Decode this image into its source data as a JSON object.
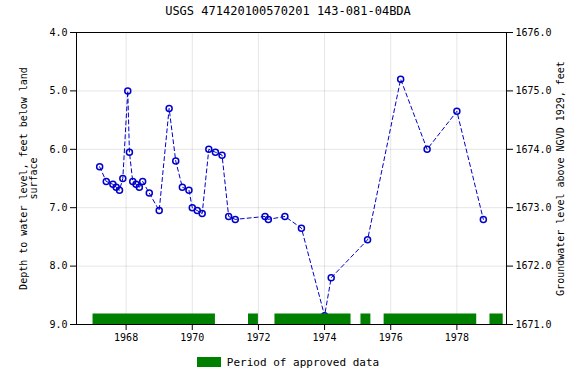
{
  "chart_data": {
    "type": "line",
    "title": "USGS 471420100570201 143-081-04BDA",
    "ylabel": "Depth to water level, feet below land\nsurface",
    "y2label": "Groundwater level above NGVD 1929, feet",
    "x": [
      1967.2,
      1967.4,
      1967.6,
      1967.7,
      1967.8,
      1967.9,
      1968.05,
      1968.1,
      1968.2,
      1968.3,
      1968.4,
      1968.5,
      1968.7,
      1969.0,
      1969.3,
      1969.5,
      1969.7,
      1969.9,
      1970.0,
      1970.15,
      1970.3,
      1970.5,
      1970.7,
      1970.9,
      1971.1,
      1971.3,
      1972.2,
      1972.3,
      1972.8,
      1973.3,
      1974.0,
      1974.2,
      1975.3,
      1976.3,
      1977.1,
      1978.0,
      1978.8
    ],
    "values": [
      6.3,
      6.55,
      6.6,
      6.65,
      6.7,
      6.5,
      5.0,
      6.05,
      6.55,
      6.6,
      6.65,
      6.55,
      6.75,
      7.05,
      5.3,
      6.2,
      6.65,
      6.7,
      7.0,
      7.05,
      7.1,
      6.0,
      6.05,
      6.1,
      7.15,
      7.2,
      7.15,
      7.2,
      7.15,
      7.35,
      8.85,
      8.2,
      7.55,
      4.8,
      6.0,
      5.35,
      7.2
    ],
    "color": "#0000cc",
    "marker": "circle",
    "line_style": "dashed",
    "approved_periods": {
      "name": "Period of approved data",
      "color": "#008000",
      "intervals": [
        [
          1967.0,
          1970.7
        ],
        [
          1971.7,
          1972.0
        ],
        [
          1972.5,
          1974.8
        ],
        [
          1975.1,
          1975.4
        ],
        [
          1975.8,
          1978.6
        ],
        [
          1979.0,
          1979.4
        ]
      ],
      "y_range": [
        8.82,
        9.0
      ]
    },
    "xlim": [
      1966.5,
      1979.5
    ],
    "xticks": [
      1968,
      1970,
      1972,
      1974,
      1976,
      1978
    ],
    "ylim": [
      9.0,
      4.0
    ],
    "yticks": [
      {
        "value": 4.0,
        "label": "4.0"
      },
      {
        "value": 5.0,
        "label": "5.0"
      },
      {
        "value": 6.0,
        "label": "6.0"
      },
      {
        "value": 7.0,
        "label": "7.0"
      },
      {
        "value": 8.0,
        "label": "8.0"
      },
      {
        "value": 9.0,
        "label": "9.0"
      }
    ],
    "y2lim": [
      1671.0,
      1676.0
    ],
    "y2ticks": [
      {
        "value": 1671.0,
        "label": "1671.0"
      },
      {
        "value": 1672.0,
        "label": "1672.0"
      },
      {
        "value": 1673.0,
        "label": "1673.0"
      },
      {
        "value": 1674.0,
        "label": "1674.0"
      },
      {
        "value": 1675.0,
        "label": "1675.0"
      },
      {
        "value": 1676.0,
        "label": "1676.0"
      }
    ],
    "grid": true,
    "legend": "bottom"
  }
}
